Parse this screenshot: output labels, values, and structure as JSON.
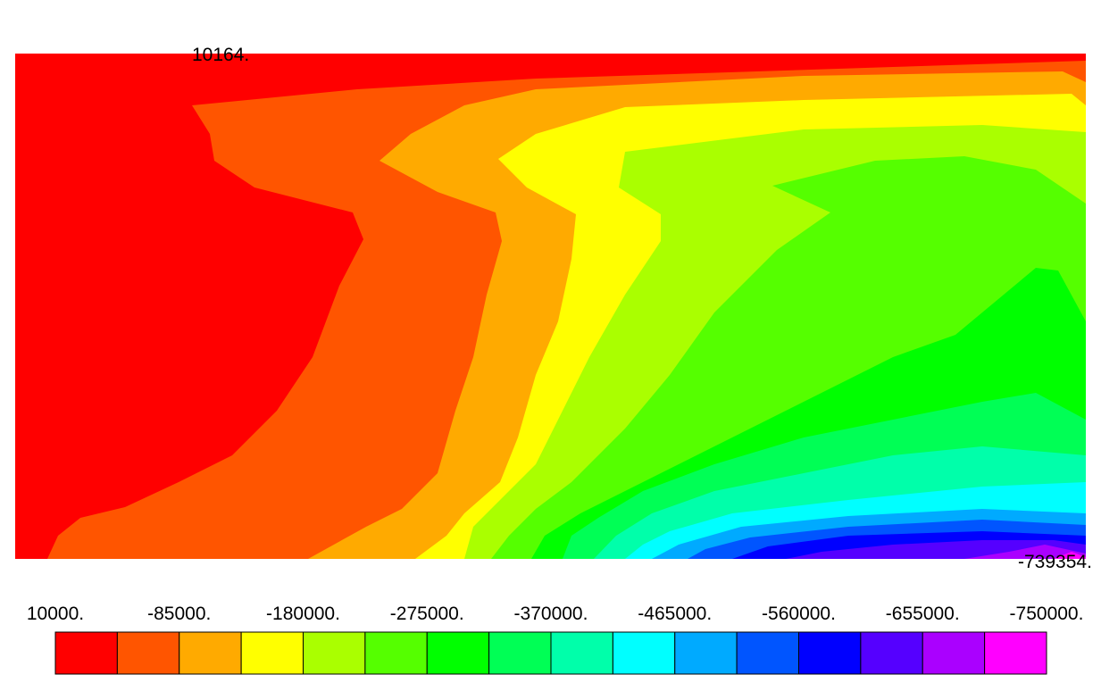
{
  "chart_data": {
    "type": "contour",
    "levels": [
      10000,
      -37500,
      -85000,
      -132500,
      -180000,
      -227500,
      -275000,
      -322500,
      -370000,
      -417500,
      -465000,
      -512500,
      -560000,
      -607500,
      -655000,
      -702500,
      -750000
    ],
    "colors": [
      "#ff0000",
      "#ff5500",
      "#ffaa00",
      "#ffff00",
      "#aaff00",
      "#55ff00",
      "#00ff00",
      "#00ff55",
      "#00ffaa",
      "#00ffff",
      "#00aaff",
      "#0055ff",
      "#0000ff",
      "#5500ff",
      "#aa00ff",
      "#ff00ff"
    ],
    "colorbar_ticks": [
      {
        "value": 10000,
        "label": "10000."
      },
      {
        "value": -85000,
        "label": "-85000."
      },
      {
        "value": -180000,
        "label": "-180000."
      },
      {
        "value": -275000,
        "label": "-275000."
      },
      {
        "value": -370000,
        "label": "-370000."
      },
      {
        "value": -465000,
        "label": "-465000."
      },
      {
        "value": -560000,
        "label": "-560000."
      },
      {
        "value": -655000,
        "label": "-655000."
      },
      {
        "value": -750000,
        "label": "-750000."
      }
    ],
    "max_annotation": {
      "value": 10164,
      "label": "10164."
    },
    "min_annotation": {
      "value": -739354,
      "label": "-739354."
    }
  }
}
